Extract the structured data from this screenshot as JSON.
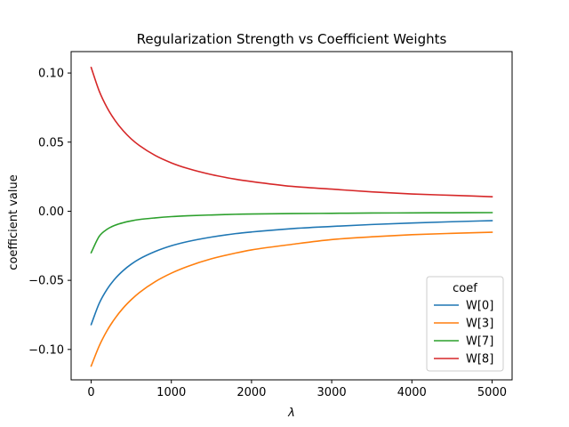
{
  "chart_data": {
    "type": "line",
    "title": "Regularization Strength vs Coefficient Weights",
    "xlabel": "λ",
    "ylabel": "coefficient value",
    "xlim": [
      -250,
      5250
    ],
    "ylim": [
      -0.122,
      0.1155
    ],
    "xticks": [
      0,
      1000,
      2000,
      3000,
      4000,
      5000
    ],
    "xtick_labels": [
      "0",
      "1000",
      "2000",
      "3000",
      "4000",
      "5000"
    ],
    "yticks": [
      -0.1,
      -0.05,
      0.0,
      0.05,
      0.1
    ],
    "ytick_labels": [
      "−0.10",
      "−0.05",
      "0.00",
      "0.05",
      "0.10"
    ],
    "grid": false,
    "legend": {
      "title": "coef",
      "placement": "lower right"
    },
    "x": [
      0,
      100,
      200,
      300,
      400,
      500,
      600,
      800,
      1000,
      1200,
      1500,
      1800,
      2000,
      2500,
      3000,
      3500,
      4000,
      4500,
      5000
    ],
    "series": [
      {
        "name": "W[0]",
        "color": "#1f77b4",
        "values": [
          -0.082,
          -0.0667,
          -0.0563,
          -0.0487,
          -0.0429,
          -0.0383,
          -0.0346,
          -0.0291,
          -0.025,
          -0.022,
          -0.0187,
          -0.0162,
          -0.015,
          -0.0126,
          -0.011,
          -0.0096,
          -0.0085,
          -0.0076,
          -0.0068
        ]
      },
      {
        "name": "W[3]",
        "color": "#ff7f0e",
        "values": [
          -0.112,
          -0.0975,
          -0.0862,
          -0.0773,
          -0.07,
          -0.064,
          -0.0589,
          -0.0509,
          -0.0448,
          -0.04,
          -0.0344,
          -0.0303,
          -0.028,
          -0.024,
          -0.0205,
          -0.0185,
          -0.017,
          -0.016,
          -0.0152
        ]
      },
      {
        "name": "W[7]",
        "color": "#2ca02c",
        "values": [
          -0.03,
          -0.0182,
          -0.013,
          -0.0101,
          -0.0083,
          -0.007,
          -0.006,
          -0.0048,
          -0.0039,
          -0.0033,
          -0.0027,
          -0.0022,
          -0.002,
          -0.0017,
          -0.0015,
          -0.0013,
          -0.0012,
          -0.0011,
          -0.001
        ]
      },
      {
        "name": "W[8]",
        "color": "#d62728",
        "values": [
          0.104,
          0.087,
          0.0748,
          0.0655,
          0.0582,
          0.0523,
          0.0476,
          0.0403,
          0.035,
          0.031,
          0.0265,
          0.0232,
          0.0215,
          0.018,
          0.016,
          0.014,
          0.0125,
          0.0115,
          0.0105
        ]
      }
    ]
  }
}
